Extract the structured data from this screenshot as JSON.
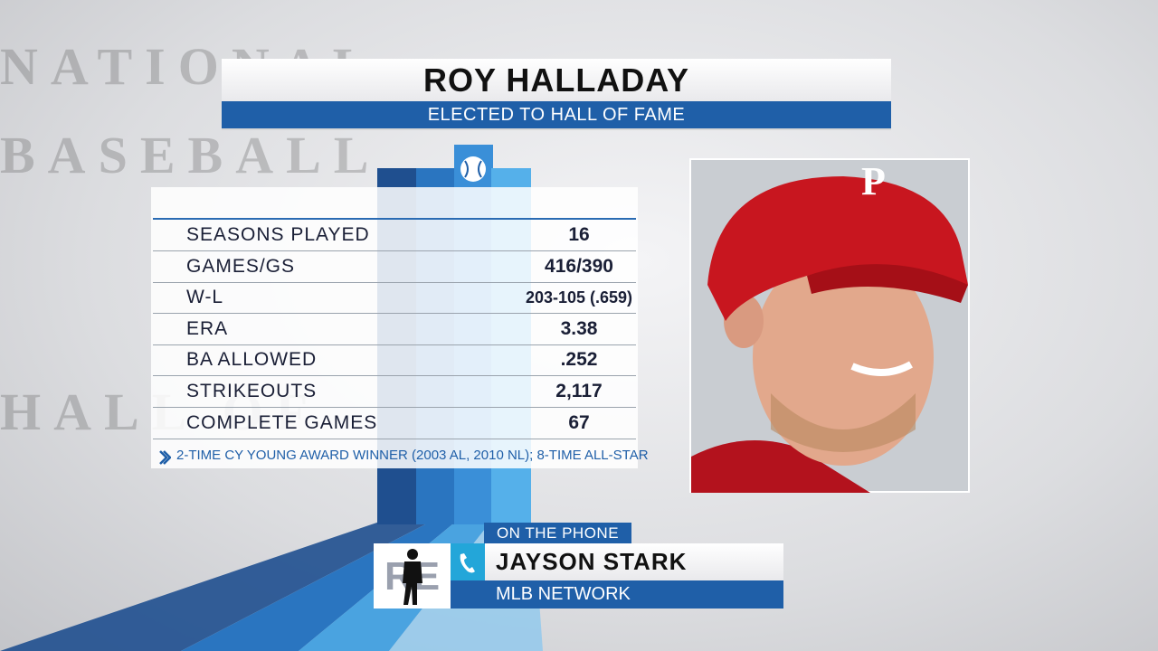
{
  "background": {
    "logo_lines": [
      "NATIONAL",
      "BASEBALL",
      "HALL OF"
    ]
  },
  "header": {
    "title": "ROY HALLADAY",
    "subtitle": "ELECTED TO HALL OF FAME"
  },
  "table": {
    "rows": [
      [
        "SEASONS PLAYED",
        "16"
      ],
      [
        "GAMES/GS",
        "416/390"
      ],
      [
        "W-L",
        "203-105 (.659)"
      ],
      [
        "ERA",
        "3.38"
      ],
      [
        "BA ALLOWED",
        ".252"
      ],
      [
        "STRIKEOUTS",
        "2,117"
      ],
      [
        "COMPLETE GAMES",
        "67"
      ]
    ],
    "footnote": "2-TIME CY YOUNG AWARD WINNER (2003 AL, 2010 NL); 8-TIME ALL-STAR"
  },
  "lower_third": {
    "tag": "ON THE PHONE",
    "name": "JAYSON STARK",
    "affiliation": "MLB NETWORK",
    "logo": "RE"
  }
}
